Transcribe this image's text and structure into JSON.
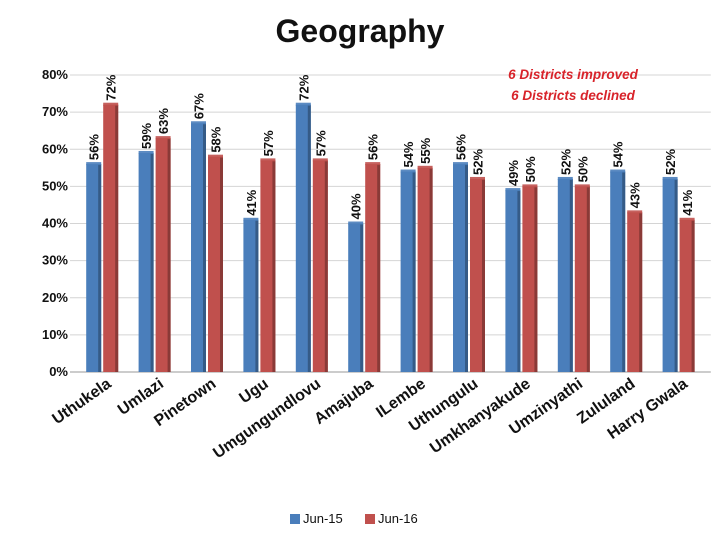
{
  "chart_data": {
    "type": "bar",
    "title": "Geography",
    "xlabel": "",
    "ylabel": "",
    "ylim": [
      0,
      0.8
    ],
    "yticks": [
      "0%",
      "10%",
      "20%",
      "30%",
      "40%",
      "50%",
      "60%",
      "70%",
      "80%"
    ],
    "categories": [
      "Uthukela",
      "Umlazi",
      "Pinetown",
      "Ugu",
      "Umgungundlovu",
      "Amajuba",
      "ILembe",
      "Uthungulu",
      "Umkhanyakude",
      "Umzinyathi",
      "Zululand",
      "Harry Gwala"
    ],
    "series": [
      {
        "name": "Jun-15",
        "color": "#4a7ebb",
        "values": [
          0.56,
          0.59,
          0.67,
          0.41,
          0.72,
          0.4,
          0.54,
          0.56,
          0.49,
          0.52,
          0.54,
          0.52
        ],
        "labels": [
          "56%",
          "59%",
          "67%",
          "41%",
          "72%",
          "40%",
          "54%",
          "56%",
          "49%",
          "52%",
          "54%",
          "52%"
        ]
      },
      {
        "name": "Jun-16",
        "color": "#c0504d",
        "values": [
          0.72,
          0.63,
          0.58,
          0.57,
          0.57,
          0.56,
          0.55,
          0.52,
          0.5,
          0.5,
          0.43,
          0.41
        ],
        "labels": [
          "72%",
          "63%",
          "58%",
          "57%",
          "57%",
          "56%",
          "55%",
          "52%",
          "50%",
          "50%",
          "43%",
          "41%"
        ]
      }
    ],
    "annotation": [
      "6 Districts improved",
      "6 Districts declined"
    ],
    "legend_position": "bottom"
  }
}
